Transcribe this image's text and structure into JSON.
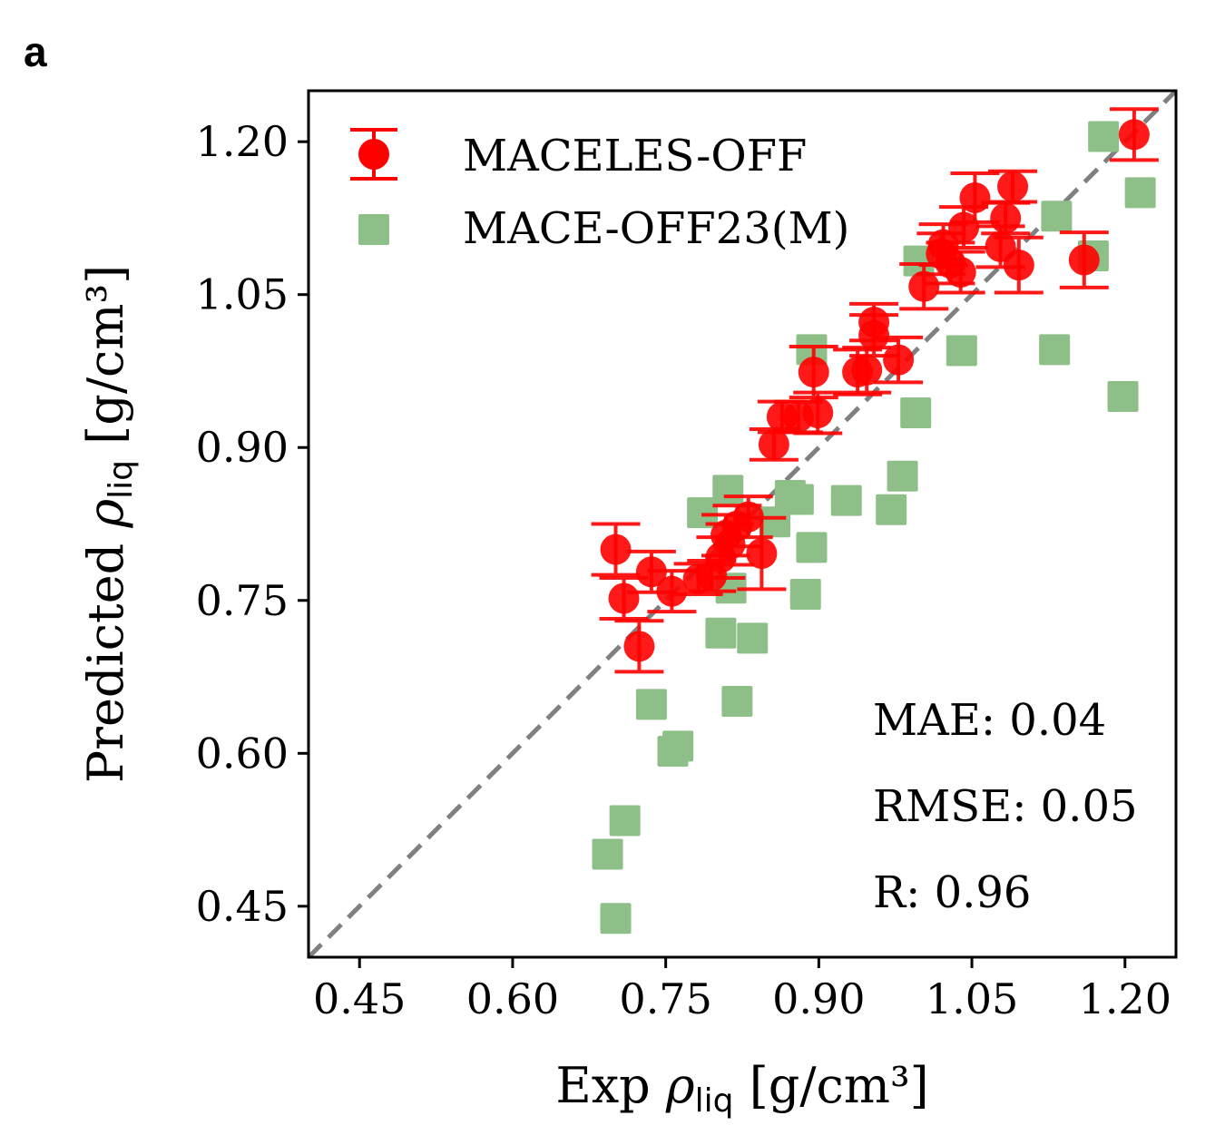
{
  "panel_label": "a",
  "chart_data": {
    "type": "scatter",
    "xlabel": {
      "prefix": "Exp ",
      "symbol": "ρ",
      "sub": "liq",
      "suffix": " [g/cm³]"
    },
    "ylabel": {
      "prefix": "Predicted ",
      "symbol": "ρ",
      "sub": "liq",
      "suffix": " [g/cm³]"
    },
    "xlim": [
      0.4,
      1.25
    ],
    "ylim": [
      0.4,
      1.25
    ],
    "xticks": [
      "0.45",
      "0.60",
      "0.75",
      "0.90",
      "1.05",
      "1.20"
    ],
    "yticks": [
      "0.45",
      "0.60",
      "0.75",
      "0.90",
      "1.05",
      "1.20"
    ],
    "grid": false,
    "legend_position": "top-left",
    "reference_line": {
      "type": "y=x",
      "style": "dashed",
      "color": "#808080"
    },
    "series": [
      {
        "name": "MACELES-OFF",
        "marker": "circle-errorbar",
        "color": "#ff0000",
        "points": [
          [
            1.209,
            1.207,
            0.025
          ],
          [
            1.16,
            1.084,
            0.027
          ],
          [
            1.09,
            1.156,
            0.015
          ],
          [
            1.083,
            1.125,
            0.015
          ],
          [
            1.096,
            1.079,
            0.027
          ],
          [
            1.078,
            1.097,
            0.02
          ],
          [
            1.053,
            1.145,
            0.024
          ],
          [
            1.042,
            1.116,
            0.02
          ],
          [
            1.039,
            1.072,
            0.02
          ],
          [
            1.022,
            1.099,
            0.02
          ],
          [
            1.029,
            1.081,
            0.02
          ],
          [
            1.02,
            1.09,
            0.02
          ],
          [
            1.003,
            1.058,
            0.022
          ],
          [
            0.978,
            0.986,
            0.022
          ],
          [
            0.954,
            1.023,
            0.018
          ],
          [
            0.954,
            1.01,
            0.02
          ],
          [
            0.938,
            0.974,
            0.022
          ],
          [
            0.947,
            0.976,
            0.022
          ],
          [
            0.895,
            0.974,
            0.025
          ],
          [
            0.899,
            0.934,
            0.02
          ],
          [
            0.88,
            0.93,
            0.015
          ],
          [
            0.864,
            0.93,
            0.015
          ],
          [
            0.856,
            0.903,
            0.015
          ],
          [
            0.844,
            0.796,
            0.035
          ],
          [
            0.831,
            0.832,
            0.02
          ],
          [
            0.82,
            0.823,
            0.02
          ],
          [
            0.809,
            0.814,
            0.02
          ],
          [
            0.813,
            0.805,
            0.02
          ],
          [
            0.804,
            0.792,
            0.02
          ],
          [
            0.795,
            0.774,
            0.015
          ],
          [
            0.782,
            0.771,
            0.015
          ],
          [
            0.756,
            0.759,
            0.02
          ],
          [
            0.736,
            0.778,
            0.02
          ],
          [
            0.701,
            0.8,
            0.025
          ],
          [
            0.709,
            0.752,
            0.02
          ],
          [
            0.724,
            0.705,
            0.025
          ]
        ]
      },
      {
        "name": "MACE-OFF23(M)",
        "marker": "square",
        "color": "#8fbf88",
        "points": [
          [
            1.179,
            1.205
          ],
          [
            1.215,
            1.15
          ],
          [
            1.133,
            1.127
          ],
          [
            1.169,
            1.088
          ],
          [
            0.998,
            1.083
          ],
          [
            1.04,
            0.995
          ],
          [
            1.131,
            0.996
          ],
          [
            1.198,
            0.95
          ],
          [
            0.995,
            0.934
          ],
          [
            0.893,
            0.996
          ],
          [
            0.982,
            0.872
          ],
          [
            0.971,
            0.839
          ],
          [
            0.927,
            0.848
          ],
          [
            0.88,
            0.849
          ],
          [
            0.872,
            0.853
          ],
          [
            0.893,
            0.802
          ],
          [
            0.887,
            0.756
          ],
          [
            0.857,
            0.827
          ],
          [
            0.811,
            0.858
          ],
          [
            0.786,
            0.836
          ],
          [
            0.814,
            0.762
          ],
          [
            0.804,
            0.718
          ],
          [
            0.835,
            0.713
          ],
          [
            0.82,
            0.651
          ],
          [
            0.736,
            0.648
          ],
          [
            0.762,
            0.607
          ],
          [
            0.757,
            0.602
          ],
          [
            0.71,
            0.534
          ],
          [
            0.693,
            0.501
          ],
          [
            0.701,
            0.438
          ]
        ]
      }
    ],
    "annotations": [
      "MAE: 0.04",
      "RMSE: 0.05",
      "R: 0.96"
    ]
  }
}
